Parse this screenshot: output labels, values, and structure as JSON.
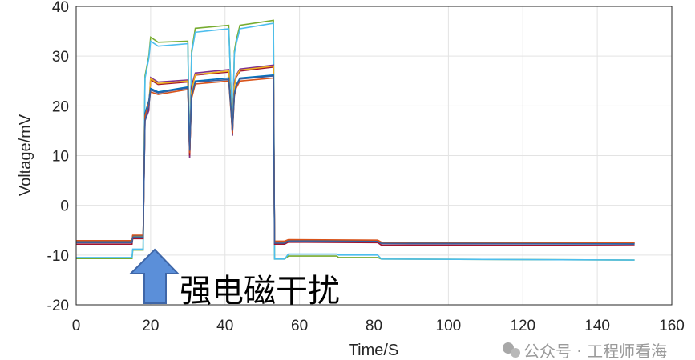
{
  "chart_data": {
    "type": "line",
    "title": "",
    "xlabel": "Time/S",
    "ylabel": "Voltage/mV",
    "xlim": [
      0,
      160
    ],
    "ylim": [
      -20,
      40
    ],
    "xticks": [
      0,
      20,
      40,
      60,
      80,
      100,
      120,
      140,
      160
    ],
    "yticks": [
      -20,
      -10,
      0,
      10,
      20,
      30,
      40
    ],
    "grid": true,
    "legend": "none",
    "annotation": {
      "text": "强电磁干扰",
      "x": 21,
      "arrow_color": "#5b8fd9"
    },
    "watermark": "公众号 · 工程师看海",
    "series": [
      {
        "color": "#77ac30",
        "x": [
          0,
          15,
          15.2,
          18,
          18.5,
          19.5,
          20,
          22,
          30,
          30.5,
          31,
          32,
          41,
          42,
          42.5,
          43,
          44,
          53,
          53.3,
          56,
          57,
          70,
          70.5,
          81,
          82,
          150
        ],
        "y": [
          -10.7,
          -10.7,
          -9,
          -9,
          26,
          30,
          33.8,
          32.8,
          33,
          9.5,
          31,
          35.6,
          36.2,
          14,
          31,
          33.2,
          36.2,
          37.2,
          -10.8,
          -10.8,
          -10.2,
          -10.2,
          -10.5,
          -10.5,
          -10.8,
          -11
        ]
      },
      {
        "color": "#4dbeee",
        "x": [
          0,
          15,
          15.2,
          18,
          18.5,
          19.5,
          20,
          22,
          30,
          30.5,
          31,
          32,
          41,
          42,
          42.5,
          43,
          44,
          53,
          53.3,
          56,
          57,
          70,
          70.5,
          81,
          82,
          150
        ],
        "y": [
          -10.5,
          -10.5,
          -8.8,
          -8.8,
          25.5,
          29.5,
          33,
          32,
          32.5,
          10,
          30.5,
          34.8,
          35.5,
          15,
          30.5,
          32.5,
          35.5,
          36.6,
          -10.8,
          -10.8,
          -9.8,
          -9.8,
          -10,
          -10,
          -10.8,
          -11
        ]
      },
      {
        "color": "#7e2f8e",
        "x": [
          0,
          15,
          15.2,
          18,
          18.5,
          19.5,
          20,
          22,
          30,
          30.5,
          31,
          32,
          41,
          42,
          42.5,
          43,
          44,
          53,
          53.3,
          56,
          57,
          81,
          82,
          150
        ],
        "y": [
          -7.4,
          -7.4,
          -6.3,
          -6.3,
          17,
          19,
          25.7,
          24.8,
          25.2,
          9.5,
          24,
          26.6,
          27.3,
          14,
          24.5,
          26.2,
          27.4,
          28.2,
          -7.5,
          -7.5,
          -7.1,
          -7.2,
          -7.6,
          -7.7
        ]
      },
      {
        "color": "#a2142f",
        "x": [
          0,
          15,
          15.2,
          18,
          18.5,
          19.5,
          20,
          22,
          30,
          30.5,
          31,
          32,
          41,
          42,
          42.5,
          43,
          44,
          53,
          53.3,
          56,
          57,
          81,
          82,
          150
        ],
        "y": [
          -7.8,
          -7.8,
          -6.7,
          -6.7,
          17.5,
          19.5,
          25.2,
          24.3,
          24.8,
          10,
          23.5,
          26.2,
          26.8,
          14.5,
          24,
          25.8,
          27,
          27.8,
          -7.8,
          -7.8,
          -7.4,
          -7.5,
          -8,
          -8.1
        ]
      },
      {
        "color": "#edb120",
        "x": [
          0,
          15,
          15.2,
          18,
          18.5,
          19.5,
          20,
          22,
          30,
          30.5,
          31,
          32,
          41,
          42,
          42.5,
          43,
          44,
          53,
          53.3,
          56,
          57,
          81,
          82,
          150
        ],
        "y": [
          -7.3,
          -7.3,
          -6.2,
          -6.2,
          18,
          20,
          25.5,
          24.5,
          25,
          11,
          23,
          26.3,
          27,
          15,
          24,
          26,
          27.2,
          28,
          -7.4,
          -7.4,
          -7,
          -7.1,
          -7.5,
          -7.6
        ]
      },
      {
        "color": "#0072bd",
        "x": [
          0,
          15,
          15.2,
          18,
          18.5,
          19.5,
          20,
          22,
          30,
          30.5,
          31,
          32,
          41,
          42,
          42.5,
          43,
          44,
          53,
          53.3,
          56,
          57,
          81,
          82,
          150
        ],
        "y": [
          -7.2,
          -7.2,
          -6.1,
          -6.1,
          18.5,
          21,
          23.5,
          22.8,
          23.8,
          12,
          22,
          25,
          25.6,
          15.5,
          22.5,
          24.2,
          25.6,
          26.2,
          -7.3,
          -7.3,
          -7,
          -7.1,
          -7.5,
          -7.6
        ]
      },
      {
        "color": "#d95319",
        "x": [
          0,
          15,
          15.2,
          18,
          18.5,
          19.5,
          20,
          22,
          30,
          30.5,
          31,
          32,
          41,
          42,
          42.5,
          43,
          44,
          53,
          53.3,
          56,
          57,
          81,
          82,
          150
        ],
        "y": [
          -7.1,
          -7.1,
          -6,
          -6,
          18,
          20.5,
          22.8,
          22.3,
          23.3,
          10.5,
          21.5,
          24.4,
          25,
          14.5,
          22,
          23.6,
          25,
          25.6,
          -7.2,
          -7.2,
          -6.9,
          -7,
          -7.4,
          -7.5
        ]
      },
      {
        "color": "#3a5f9e",
        "x": [
          0,
          15,
          15.2,
          18,
          18.5,
          19.5,
          20,
          22,
          30,
          30.5,
          31,
          32,
          41,
          42,
          42.5,
          43,
          44,
          53,
          53.3,
          56,
          57,
          81,
          82,
          150
        ],
        "y": [
          -7.5,
          -7.5,
          -6.4,
          -6.4,
          17,
          20,
          23.2,
          22.6,
          23.6,
          11,
          22,
          24.8,
          25.3,
          15,
          22.3,
          24,
          25.4,
          26,
          -7.6,
          -7.6,
          -7.2,
          -7.3,
          -7.7,
          -7.8
        ]
      }
    ]
  }
}
